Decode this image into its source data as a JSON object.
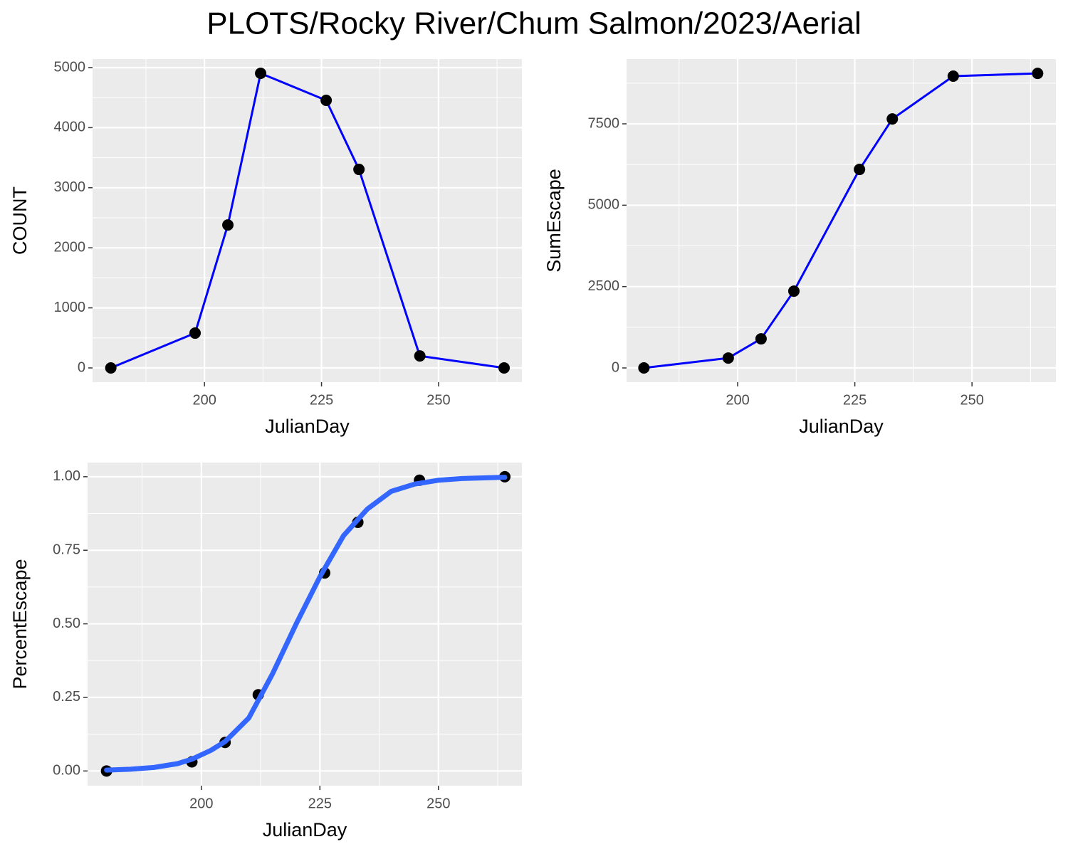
{
  "title": "PLOTS/Rocky River/Chum Salmon/2023/Aerial",
  "chart_data": [
    {
      "type": "line",
      "x_label": "JulianDay",
      "y_label": "COUNT",
      "x": [
        180,
        198,
        205,
        212,
        226,
        233,
        246,
        264
      ],
      "values": [
        0,
        580,
        2380,
        4905,
        4455,
        3305,
        200,
        0
      ],
      "color": "#0000ff",
      "point_color": "#000000",
      "xlim": [
        176.1,
        267.8
      ],
      "ylim": [
        -237,
        5142
      ],
      "xticks": [
        200,
        225,
        250
      ],
      "yticks": [
        0,
        1000,
        2000,
        3000,
        4000,
        5000
      ],
      "xminor": [
        187.5,
        212.5,
        237.5,
        262.5
      ],
      "yminor": [
        500,
        1500,
        2500,
        3500,
        4500
      ],
      "grid": true
    },
    {
      "type": "line",
      "x_label": "JulianDay",
      "y_label": "SumEscape",
      "x": [
        180,
        198,
        205,
        212,
        226,
        233,
        246,
        264
      ],
      "values": [
        0,
        305,
        895,
        2360,
        6100,
        7650,
        8965,
        9050
      ],
      "color": "#0000ff",
      "point_color": "#000000",
      "xlim": [
        176.3,
        267.9
      ],
      "ylim": [
        -437,
        9490
      ],
      "xticks": [
        200,
        225,
        250
      ],
      "yticks": [
        0,
        2500,
        5000,
        7500
      ],
      "xminor": [
        187.5,
        212.5,
        237.5,
        262.5
      ],
      "yminor": [
        1250,
        3750,
        6250,
        8750
      ],
      "grid": true
    },
    {
      "type": "scatter",
      "x_label": "JulianDay",
      "y_label": "PercentEscape",
      "x": [
        180,
        198,
        205,
        212,
        226,
        233,
        246,
        264
      ],
      "values": [
        0,
        0.031,
        0.097,
        0.259,
        0.673,
        0.845,
        0.988,
        1.0
      ],
      "point_color": "#000000",
      "fit": {
        "color": "#3366ff",
        "x": [
          180,
          185,
          190,
          195,
          198,
          202,
          205,
          210,
          215,
          220,
          225,
          230,
          235,
          240,
          245,
          250,
          255,
          264
        ],
        "values": [
          0.003,
          0.006,
          0.012,
          0.025,
          0.04,
          0.07,
          0.1,
          0.18,
          0.33,
          0.5,
          0.66,
          0.8,
          0.89,
          0.95,
          0.975,
          0.988,
          0.994,
          0.998
        ]
      },
      "xlim": [
        176,
        267.6
      ],
      "ylim": [
        -0.05,
        1.048
      ],
      "xticks": [
        200,
        225,
        250
      ],
      "yticks": [
        {
          "value": 0,
          "label": "0.00"
        },
        {
          "value": 0.25,
          "label": "0.25"
        },
        {
          "value": 0.5,
          "label": "0.50"
        },
        {
          "value": 0.75,
          "label": "0.75"
        },
        {
          "value": 1,
          "label": "1.00"
        }
      ],
      "xminor": [
        187.5,
        212.5,
        237.5,
        262.5
      ],
      "yminor": [
        0.125,
        0.375,
        0.625,
        0.875
      ],
      "grid": true
    }
  ]
}
